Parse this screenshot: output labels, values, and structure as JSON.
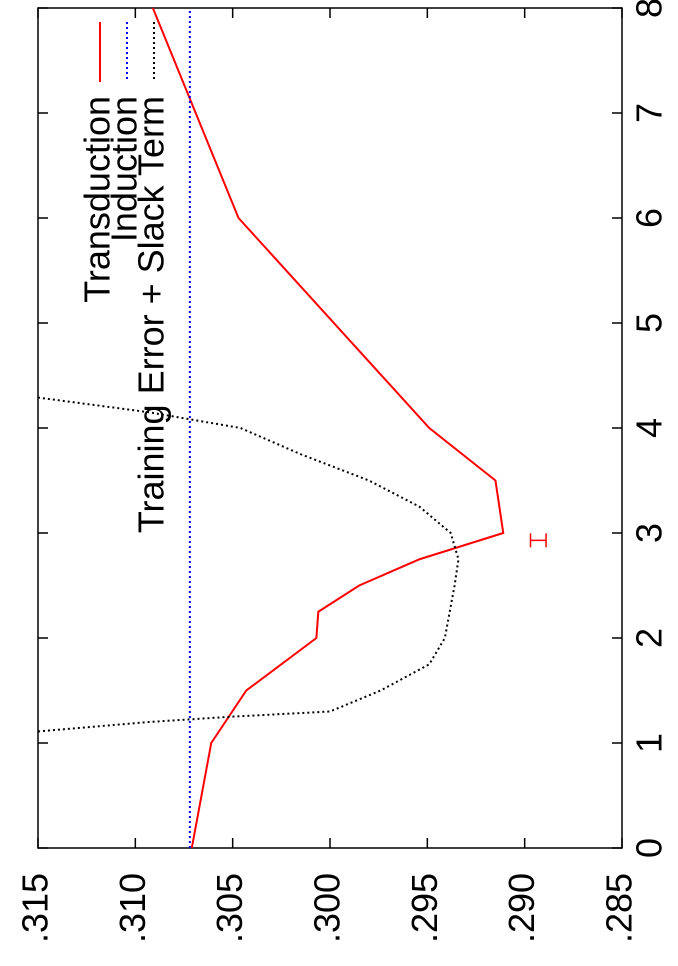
{
  "chart_data": {
    "type": "line",
    "xlim": [
      0,
      8
    ],
    "xticks": [
      0,
      1,
      2,
      3,
      4,
      5,
      6,
      7,
      8
    ],
    "ylim": [
      0.285,
      0.315
    ],
    "yticks": [
      {
        "value": 0.315,
        "label": ".315"
      },
      {
        "value": 0.31,
        "label": ".310"
      },
      {
        "value": 0.305,
        "label": ".305"
      },
      {
        "value": 0.3,
        "label": ".300"
      },
      {
        "value": 0.295,
        "label": ".295"
      },
      {
        "value": 0.29,
        "label": ".290"
      },
      {
        "value": 0.285,
        "label": ".285"
      }
    ],
    "grid": false,
    "legend": "top-right",
    "series": [
      {
        "name": "Transduction",
        "color": "#ff0000",
        "style": "solid",
        "x": [
          0,
          1,
          1.5,
          2,
          2.25,
          2.5,
          2.75,
          3,
          3.5,
          4,
          6,
          8
        ],
        "values": [
          0.3071,
          0.3061,
          0.3043,
          0.3007,
          0.3006,
          0.2985,
          0.2954,
          0.2911,
          0.2915,
          0.2949,
          0.3047,
          0.3091
        ],
        "error_bars": [
          {
            "x": 2.93,
            "value": 0.2893,
            "error": 0.0004
          }
        ]
      },
      {
        "name": "Induction",
        "color": "#0000ff",
        "style": "dotted",
        "x": [
          0,
          8
        ],
        "values": [
          0.3072,
          0.3072
        ]
      },
      {
        "name": "Training Error + Slack Term",
        "color": "#000000",
        "style": "dotted",
        "x": [
          1.11,
          1.2,
          1.25,
          1.3,
          1.5,
          1.75,
          2,
          2.5,
          2.75,
          3,
          3.25,
          3.5,
          3.75,
          4,
          4.15,
          4.29
        ],
        "values": [
          0.315,
          0.3093,
          0.3051,
          0.3,
          0.2974,
          0.2949,
          0.2941,
          0.2936,
          0.2934,
          0.2938,
          0.2954,
          0.298,
          0.3015,
          0.3046,
          0.3093,
          0.315
        ]
      }
    ]
  }
}
